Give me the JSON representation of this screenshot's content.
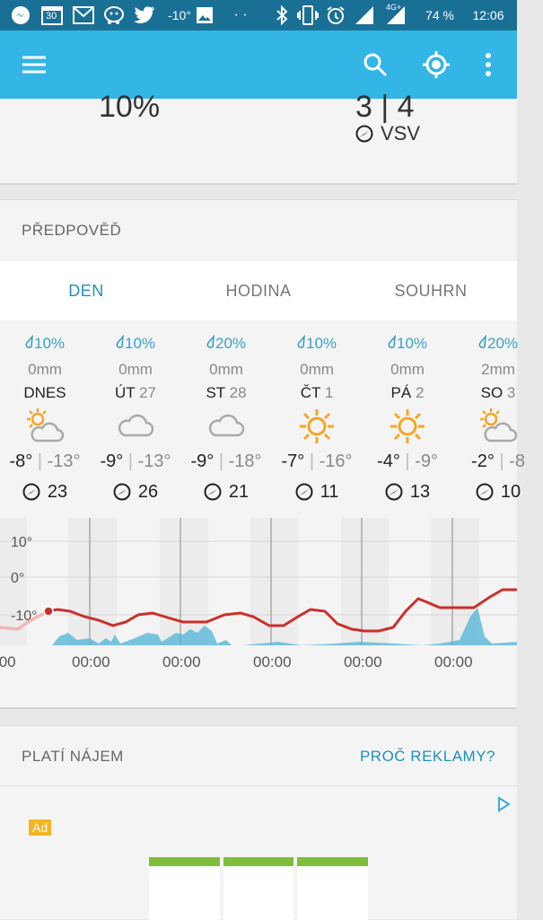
{
  "status_bar": {
    "temp": "-10°",
    "dots": "· ·",
    "network": "4G+",
    "battery": "74 %",
    "time": "12:06",
    "icons": [
      "messenger-icon",
      "calendar-icon",
      "gmail-icon",
      "waze-icon",
      "twitter-icon",
      "image-icon",
      "bluetooth-icon",
      "vibrate-icon",
      "alarm-icon",
      "signal-icon",
      "battery-icon"
    ],
    "calendar_day": "30"
  },
  "appbar": {
    "icons": [
      "menu-icon",
      "search-icon",
      "locate-icon",
      "more-icon"
    ]
  },
  "top_card": {
    "left_value": "10%",
    "right_value": "3 | 4",
    "wind_dir": "VSV"
  },
  "forecast": {
    "title": "PŘEDPOVĚĎ",
    "tabs": [
      "DEN",
      "HODINA",
      "SOUHRN"
    ],
    "days": [
      {
        "rain": "10%",
        "mm": "0mm",
        "name": "DNES",
        "num": "",
        "weather": "partly-cloudy",
        "hi": "-8°",
        "lo": "-13°",
        "wind": "23"
      },
      {
        "rain": "10%",
        "mm": "0mm",
        "name": "ÚT",
        "num": "27",
        "weather": "cloudy",
        "hi": "-9°",
        "lo": "-13°",
        "wind": "26"
      },
      {
        "rain": "20%",
        "mm": "0mm",
        "name": "ST",
        "num": "28",
        "weather": "cloudy",
        "hi": "-9°",
        "lo": "-18°",
        "wind": "21"
      },
      {
        "rain": "10%",
        "mm": "0mm",
        "name": "ČT",
        "num": "1",
        "weather": "sunny",
        "hi": "-7°",
        "lo": "-16°",
        "wind": "11"
      },
      {
        "rain": "10%",
        "mm": "0mm",
        "name": "PÁ",
        "num": "2",
        "weather": "sunny",
        "hi": "-4°",
        "lo": "-9°",
        "wind": "13"
      },
      {
        "rain": "20%",
        "mm": "2mm",
        "name": "SO",
        "num": "3",
        "weather": "partly-cloudy",
        "hi": "-2°",
        "lo": "-8",
        "wind": "10"
      }
    ],
    "chart": {
      "y_labels": [
        "10°",
        "0°",
        "-10°"
      ],
      "x_labels": [
        ":00",
        "00:00",
        "00:00",
        "00:00",
        "00:00",
        "00:00"
      ],
      "temp_color": "#c9302c",
      "precip_color": "#4fb4d8"
    }
  },
  "ads": {
    "title": "PLATÍ NÁJEM",
    "why": "PROČ REKLAMY?",
    "badge": "Ad"
  }
}
